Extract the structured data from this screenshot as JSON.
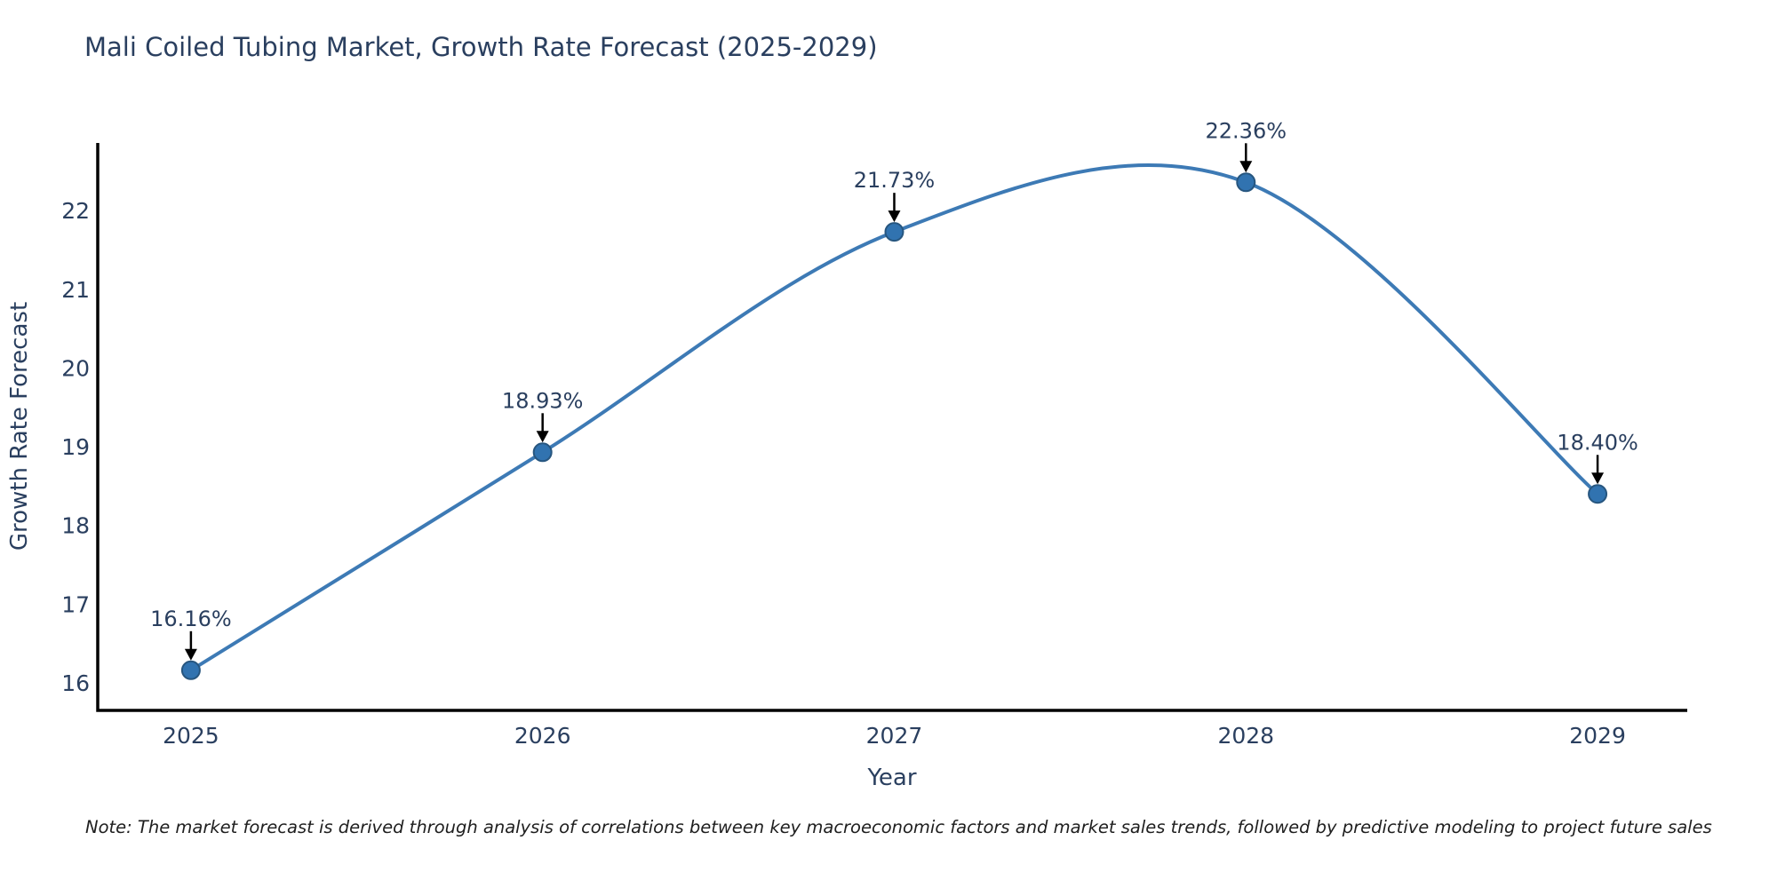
{
  "title": "Mali Coiled Tubing Market, Growth Rate Forecast (2025-2029)",
  "note": "Note: The market forecast is derived through analysis of correlations between key macroeconomic factors and market sales trends, followed by predictive modeling to project future sales",
  "chart_data": {
    "type": "line",
    "line_shape": "spline",
    "x": [
      2025,
      2026,
      2027,
      2028,
      2029
    ],
    "values": [
      16.16,
      18.93,
      21.73,
      22.36,
      18.4
    ],
    "point_labels": [
      "16.16%",
      "18.93%",
      "21.73%",
      "22.36%",
      "18.40%"
    ],
    "xticks": [
      "2025",
      "2026",
      "2027",
      "2028",
      "2029"
    ],
    "yticks": [
      "16",
      "17",
      "18",
      "19",
      "20",
      "21",
      "22"
    ],
    "ytick_values": [
      16,
      17,
      18,
      19,
      20,
      21,
      22
    ],
    "xlabel": "Year",
    "ylabel": "Growth Rate Forecast",
    "xlim": [
      2024.735,
      2029.255
    ],
    "ylim": [
      15.65,
      22.86
    ],
    "grid": false,
    "legend": "none",
    "markers": true,
    "annotations_arrows": true,
    "colors": {
      "line": "#3d7ab5",
      "marker": "#3173b0",
      "marker_border": "#27567f",
      "arrow": "#000000",
      "text": "#2a3f5f",
      "axis": "#000000",
      "title": "#2a3f5f",
      "note_text": "#1f1f1f",
      "background": "#ffffff"
    }
  }
}
